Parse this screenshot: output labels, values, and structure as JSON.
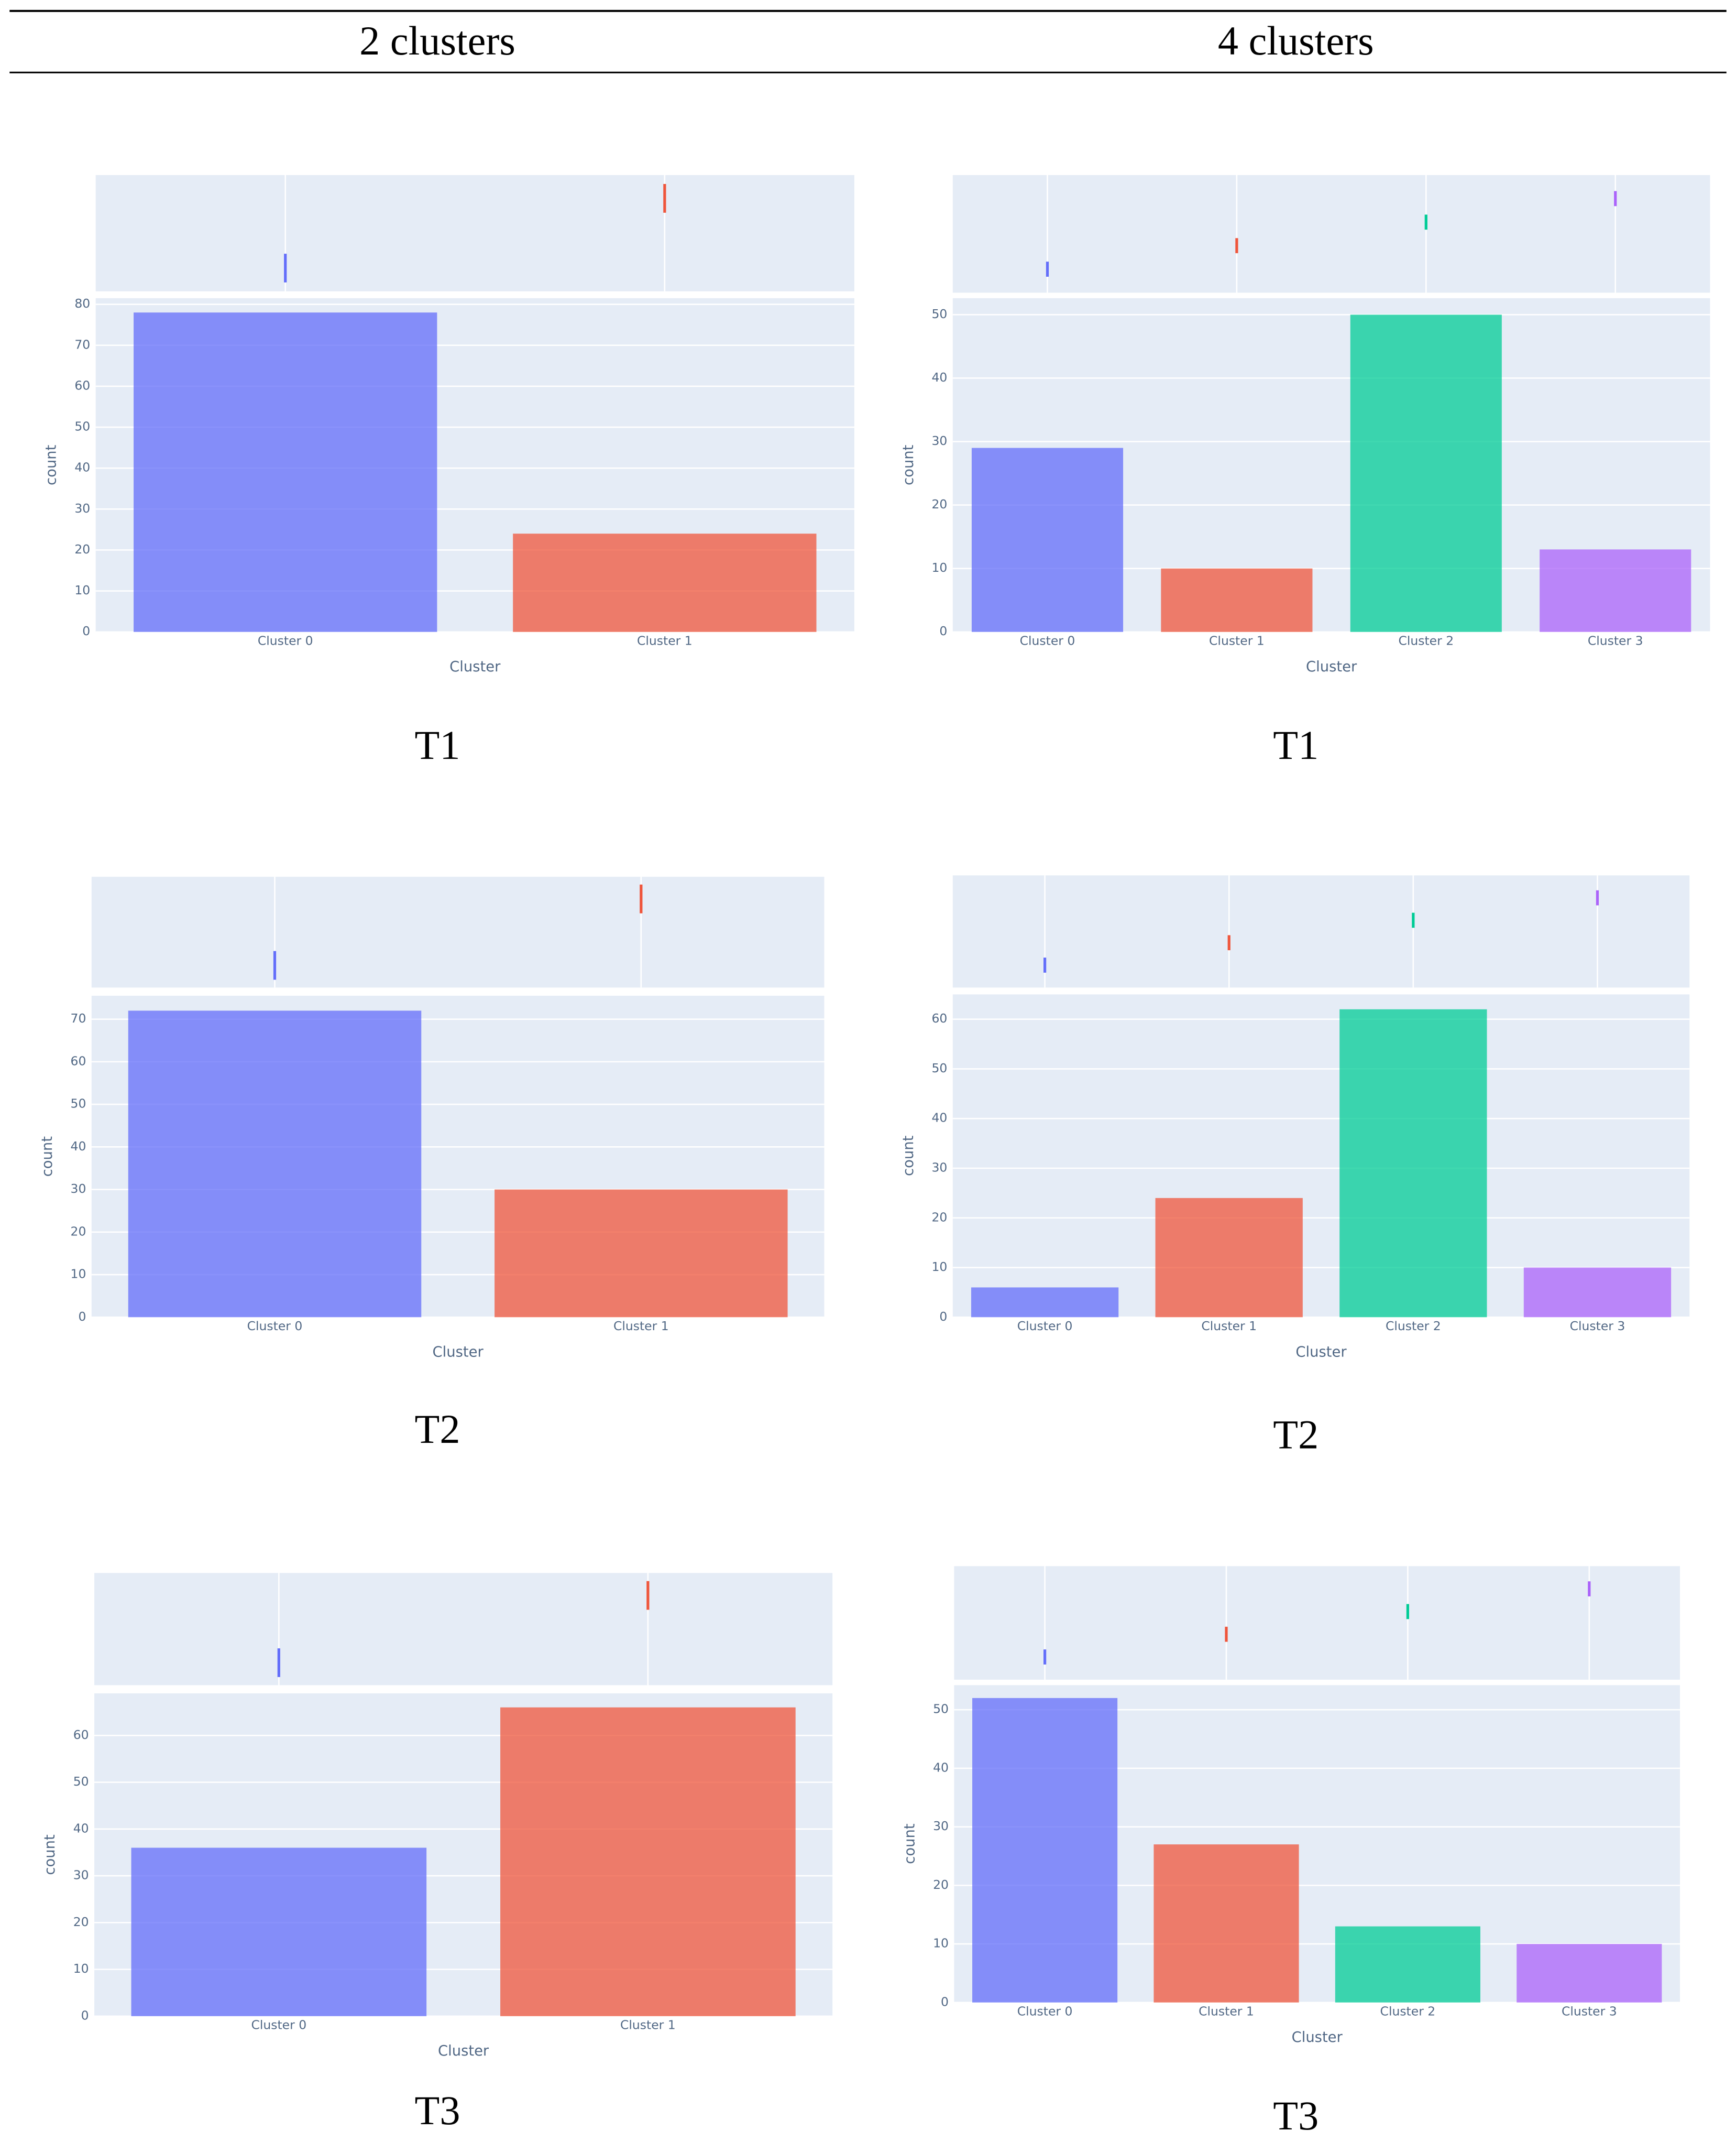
{
  "header": [
    "2 clusters",
    "4 clusters"
  ],
  "chart_data": [
    {
      "type": "bar",
      "caption": "T1",
      "x_label": "Cluster",
      "y_label": "count",
      "categories": [
        "Cluster 0",
        "Cluster 1"
      ],
      "values": [
        78,
        24
      ],
      "colors": [
        "#636efa",
        "#ef553b"
      ],
      "ylim": [
        0,
        81.5
      ],
      "yticks": [
        0,
        10,
        20,
        30,
        40,
        50,
        60,
        70,
        80
      ],
      "grid": true
    },
    {
      "type": "bar",
      "caption": "T1",
      "x_label": "Cluster",
      "y_label": "count",
      "categories": [
        "Cluster 0",
        "Cluster 1",
        "Cluster 2",
        "Cluster 3"
      ],
      "values": [
        29,
        10,
        50,
        13
      ],
      "colors": [
        "#636efa",
        "#ef553b",
        "#00cc96",
        "#ab63fa"
      ],
      "ylim": [
        0,
        52.6
      ],
      "yticks": [
        0,
        10,
        20,
        30,
        40,
        50
      ],
      "grid": true
    },
    {
      "type": "bar",
      "caption": "T2",
      "x_label": "Cluster",
      "y_label": "count",
      "categories": [
        "Cluster 0",
        "Cluster 1"
      ],
      "values": [
        72,
        30
      ],
      "colors": [
        "#636efa",
        "#ef553b"
      ],
      "ylim": [
        0,
        75.5
      ],
      "yticks": [
        0,
        10,
        20,
        30,
        40,
        50,
        60,
        70
      ],
      "grid": true
    },
    {
      "type": "bar",
      "caption": "T2",
      "x_label": "Cluster",
      "y_label": "count",
      "categories": [
        "Cluster 0",
        "Cluster 1",
        "Cluster 2",
        "Cluster 3"
      ],
      "values": [
        6,
        24,
        62,
        10
      ],
      "colors": [
        "#636efa",
        "#ef553b",
        "#00cc96",
        "#ab63fa"
      ],
      "ylim": [
        0,
        65
      ],
      "yticks": [
        0,
        10,
        20,
        30,
        40,
        50,
        60
      ],
      "grid": true
    },
    {
      "type": "bar",
      "caption": "T3",
      "x_label": "Cluster",
      "y_label": "count",
      "categories": [
        "Cluster 0",
        "Cluster 1"
      ],
      "values": [
        36,
        66
      ],
      "colors": [
        "#636efa",
        "#ef553b"
      ],
      "ylim": [
        0,
        69
      ],
      "yticks": [
        0,
        10,
        20,
        30,
        40,
        50,
        60
      ],
      "grid": true
    },
    {
      "type": "bar",
      "caption": "T3",
      "x_label": "Cluster",
      "y_label": "count",
      "categories": [
        "Cluster 0",
        "Cluster 1",
        "Cluster 2",
        "Cluster 3"
      ],
      "values": [
        52,
        27,
        13,
        10
      ],
      "colors": [
        "#636efa",
        "#ef553b",
        "#00cc96",
        "#ab63fa"
      ],
      "ylim": [
        0,
        54.2
      ],
      "yticks": [
        0,
        10,
        20,
        30,
        40,
        50
      ],
      "grid": true
    }
  ]
}
